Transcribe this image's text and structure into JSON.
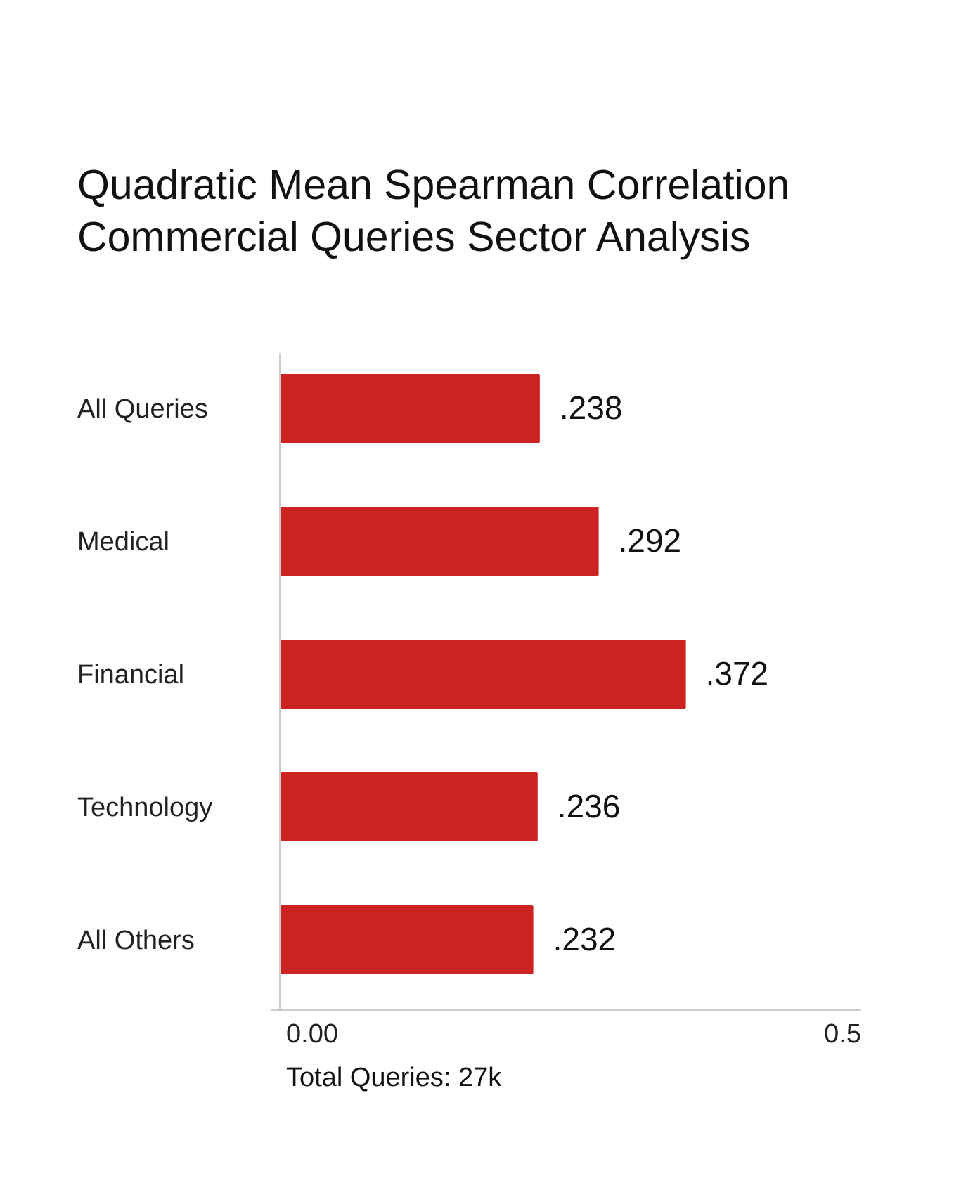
{
  "chart_data": {
    "type": "bar",
    "orientation": "horizontal",
    "title": [
      "Quadratic Mean Spearman Correlation",
      "Commercial Queries Sector Analysis"
    ],
    "categories": [
      "All Queries",
      "Medical",
      "Financial",
      "Technology",
      "All Others"
    ],
    "values": [
      0.238,
      0.292,
      0.372,
      0.236,
      0.232
    ],
    "value_labels": [
      ".238",
      ".292",
      ".372",
      ".236",
      ".232"
    ],
    "xlim": [
      0,
      0.5
    ],
    "x_ticks": [
      0,
      0.5
    ],
    "x_tick_labels": [
      "0.00",
      "0.5"
    ],
    "xlabel": "Total Queries: 27k",
    "ylabel": "",
    "grid": false,
    "legend": "none",
    "bar_color": "#cc2222"
  }
}
